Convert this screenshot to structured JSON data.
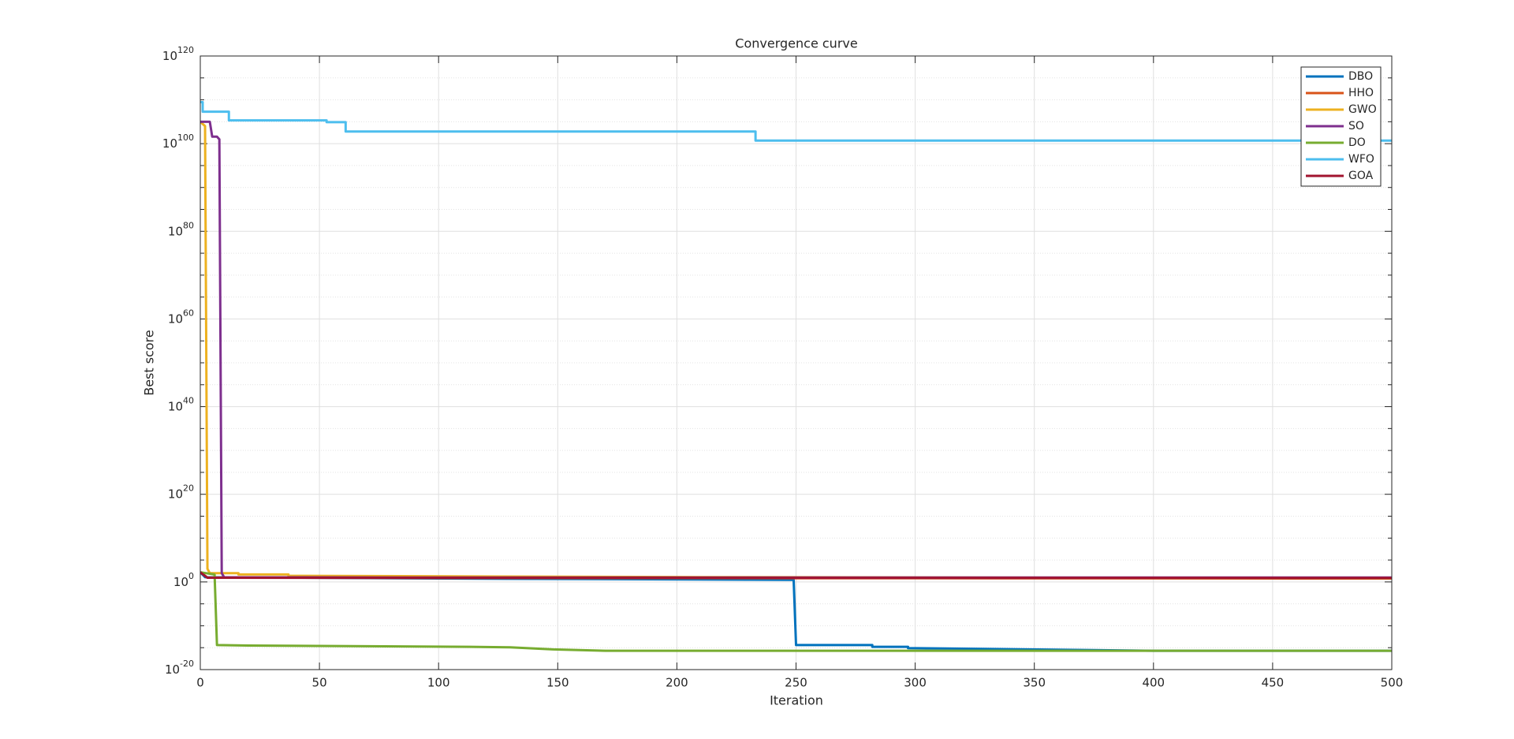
{
  "chart_data": {
    "type": "line",
    "title": "Convergence curve",
    "x_label": "Iteration",
    "y_label": "Best score",
    "y_scale": "log",
    "grid": true,
    "minor_grid": true,
    "legend_position": "northeast",
    "xlim": [
      0,
      500
    ],
    "xticks": [
      0,
      50,
      100,
      150,
      200,
      250,
      300,
      350,
      400,
      450,
      500
    ],
    "ylim": [
      1e-20,
      1e+120
    ],
    "yticks": [
      {
        "value": 1e-20,
        "label": "10",
        "exponent": "-20"
      },
      {
        "value": 1,
        "label": "10",
        "exponent": "0"
      },
      {
        "value": 1e+20,
        "label": "10",
        "exponent": "20"
      },
      {
        "value": 1e+40,
        "label": "10",
        "exponent": "40"
      },
      {
        "value": 1e+60,
        "label": "10",
        "exponent": "60"
      },
      {
        "value": 1e+80,
        "label": "10",
        "exponent": "80"
      },
      {
        "value": 1e+100,
        "label": "10",
        "exponent": "100"
      },
      {
        "value": 1e+120,
        "label": "10",
        "exponent": "120"
      }
    ],
    "yminorticks": [
      1e-15,
      1e-10,
      1e-05,
      100000.0,
      10000000000.0,
      1000000000000000.0,
      1e+25,
      1e+30,
      1e+35,
      1e+45,
      1e+50,
      1e+55,
      1e+65,
      1e+70,
      1e+75,
      1e+85,
      1e+90,
      1e+95,
      1e+105,
      1e+110,
      1e+115
    ],
    "series": [
      {
        "name": "DBO",
        "color": "#0072BD",
        "x": [
          0,
          2,
          100,
          249,
          250,
          282,
          282,
          297,
          297,
          400,
          500
        ],
        "values": [
          160.0,
          12.0,
          6,
          3,
          4e-15,
          4e-15,
          1.6e-15,
          1.6e-15,
          8e-16,
          2e-16,
          2e-16
        ]
      },
      {
        "name": "HHO",
        "color": "#D95319",
        "x": [
          0,
          3,
          100,
          300,
          500
        ],
        "values": [
          160.0,
          10.0,
          8,
          7,
          6
        ]
      },
      {
        "name": "GWO",
        "color": "#EDB120",
        "x": [
          0,
          2,
          3,
          4,
          16,
          16,
          37,
          37,
          200,
          500
        ],
        "values": [
          1e+105,
          1e+104,
          1000.0,
          100.0,
          100.0,
          50.0,
          50.0,
          25.0,
          13.0,
          7
        ]
      },
      {
        "name": "SO",
        "color": "#7E2F8E",
        "x": [
          0,
          4,
          5,
          7,
          8,
          9,
          10,
          100,
          500
        ],
        "values": [
          1e+105,
          1e+105,
          4e+101,
          4e+101,
          1e+101,
          100.0,
          12.0,
          10.0,
          10.0
        ]
      },
      {
        "name": "DO",
        "color": "#77AC30",
        "x": [
          0,
          6,
          7,
          20,
          113,
          130,
          148,
          170,
          500
        ],
        "values": [
          160.0,
          50.0,
          4e-15,
          3e-15,
          1.6e-15,
          1.2e-15,
          4e-16,
          2e-16,
          2e-16
        ]
      },
      {
        "name": "WFO",
        "color": "#4DBEEE",
        "x": [
          0,
          1,
          1,
          12,
          12,
          53,
          53,
          61,
          61,
          233,
          233,
          500
        ],
        "values": [
          3e+109,
          3e+109,
          2e+107,
          2e+107,
          2e+105,
          2e+105,
          8e+104,
          8e+104,
          6e+102,
          6e+102,
          5e+100,
          5e+100
        ]
      },
      {
        "name": "GOA",
        "color": "#A2142F",
        "x": [
          0,
          3,
          500
        ],
        "values": [
          160.0,
          9,
          8
        ]
      }
    ]
  }
}
